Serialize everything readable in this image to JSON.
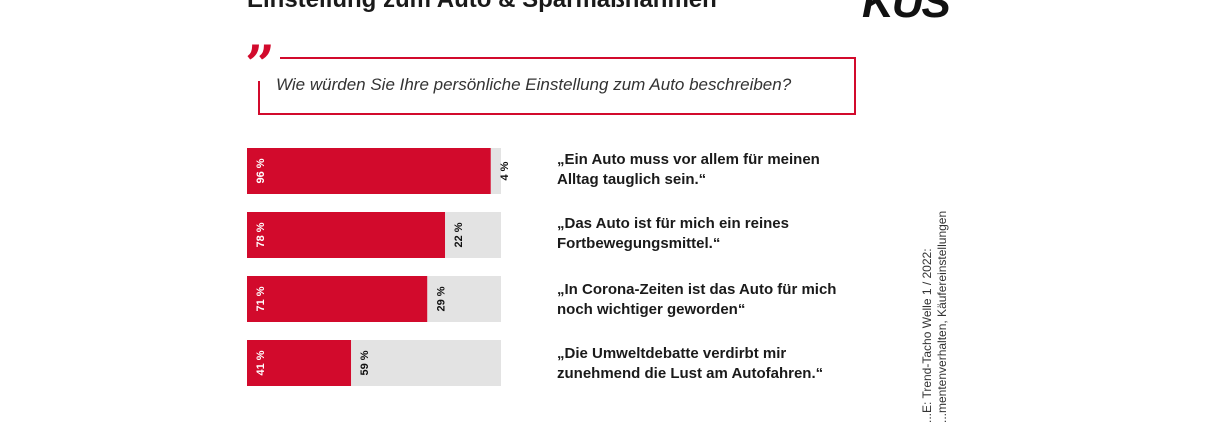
{
  "header": {
    "title": "Einstellung zum Auto & Sparmaßnahmen",
    "logo": "KÜS"
  },
  "question": "Wie würden Sie Ihre persönliche Einstellung zum Auto beschreiben?",
  "source": {
    "line1": "...E: Trend-Tacho Welle 1 / 2022:",
    "line2": "...mentenverhalten, Käufereinstellungen"
  },
  "colors": {
    "agree": "#d20a2c",
    "disagree": "#e3e3e3"
  },
  "chart_data": {
    "type": "bar",
    "orientation": "horizontal",
    "stacked": true,
    "categories": [
      "„Ein Auto muss vor allem für meinen Alltag tauglich sein.“",
      "„Das Auto ist für mich ein reines Fortbewegungsmittel.“",
      "„In Corona-Zeiten ist das Auto für mich noch wichtiger geworden“",
      "„Die Umweltdebatte verdirbt mir zunehmend die Lust am Autofahren.“"
    ],
    "category_lines": [
      [
        "„Ein Auto muss vor allem für meinen",
        "Alltag tauglich sein.“"
      ],
      [
        "„Das Auto ist für mich ein reines",
        "Fortbewegungsmittel.“"
      ],
      [
        "„In Corona-Zeiten ist das Auto für mich",
        "noch wichtiger geworden“"
      ],
      [
        "„Die Umweltdebatte verdirbt mir",
        "zunehmend die Lust am Autofahren.“"
      ]
    ],
    "series": [
      {
        "values": [
          96,
          78,
          71,
          41
        ],
        "labels": [
          "96 %",
          "78 %",
          "71 %",
          "41 %"
        ]
      },
      {
        "values": [
          4,
          22,
          29,
          59
        ],
        "labels": [
          "4 %",
          "22 %",
          "29 %",
          "59 %"
        ]
      }
    ],
    "xlim": [
      0,
      100
    ],
    "unit": "%"
  }
}
